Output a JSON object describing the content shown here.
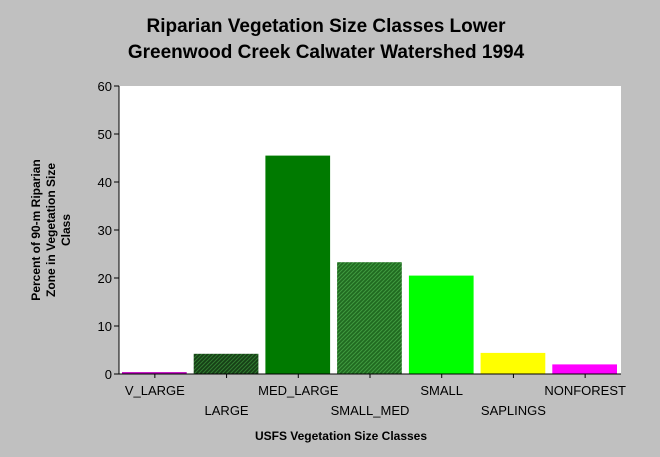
{
  "chart_data": {
    "type": "bar",
    "title_lines": [
      "Riparian Vegetation Size Classes Lower",
      "Greenwood Creek Calwater Watershed 1994"
    ],
    "xlabel": "USFS Vegetation Size Classes",
    "ylabel_lines": [
      "Percent of 90-m Riparian",
      "Zone in Vegetation Size",
      "Class"
    ],
    "categories": [
      "V_LARGE",
      "LARGE",
      "MED_LARGE",
      "SMALL_MED",
      "SMALL",
      "SAPLINGS",
      "NONFOREST"
    ],
    "values": [
      0.4,
      4.2,
      45.5,
      23.3,
      20.5,
      4.4,
      2.0
    ],
    "colors": [
      "#c000c0",
      "#1a5c1a",
      "#007a00",
      "#1e7a1e",
      "#00ff00",
      "#ffff00",
      "#ff00ff"
    ],
    "patterns": [
      "solid",
      "hatched",
      "solid",
      "hatched",
      "solid",
      "solid",
      "solid"
    ],
    "ylim": [
      0,
      60
    ],
    "yticks": [
      0,
      10,
      20,
      30,
      40,
      50,
      60
    ],
    "grid": false,
    "legend": "none"
  }
}
